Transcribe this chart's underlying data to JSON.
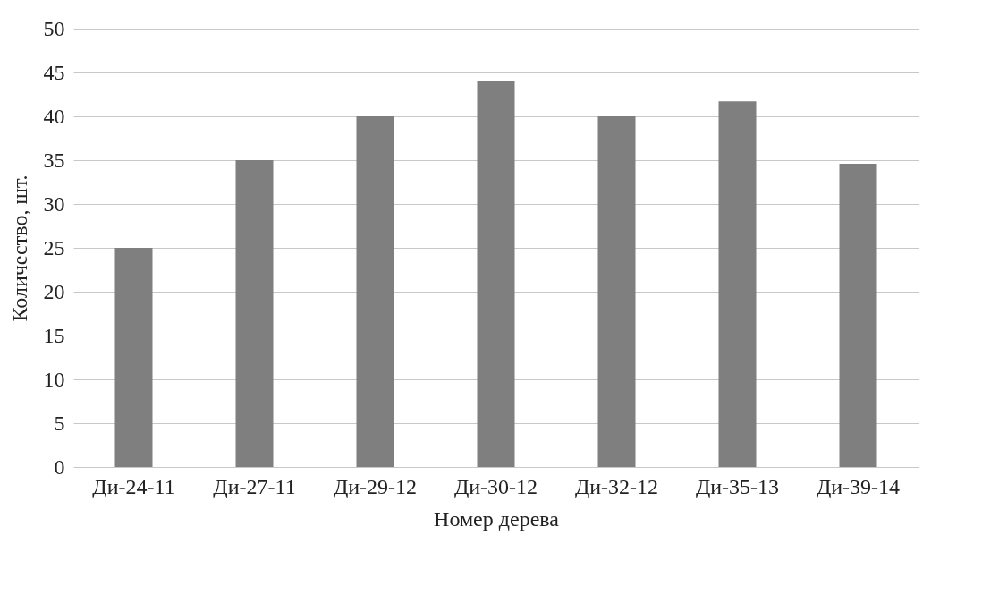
{
  "chart_data": {
    "type": "bar",
    "xlabel": "Номер дерева",
    "ylabel": "Количество, шт.",
    "categories": [
      "Ди-24-11",
      "Ди-27-11",
      "Ди-29-12",
      "Ди-30-12",
      "Ди-32-12",
      "Ди-35-13",
      "Ди-39-14"
    ],
    "values": [
      25,
      35,
      40,
      44,
      40,
      41.7,
      34.6
    ],
    "color": "#7f7f7f",
    "ylim": [
      0,
      50
    ],
    "yticks": [
      0,
      5,
      10,
      15,
      20,
      25,
      30,
      35,
      40,
      45,
      50
    ],
    "grid": "y"
  }
}
